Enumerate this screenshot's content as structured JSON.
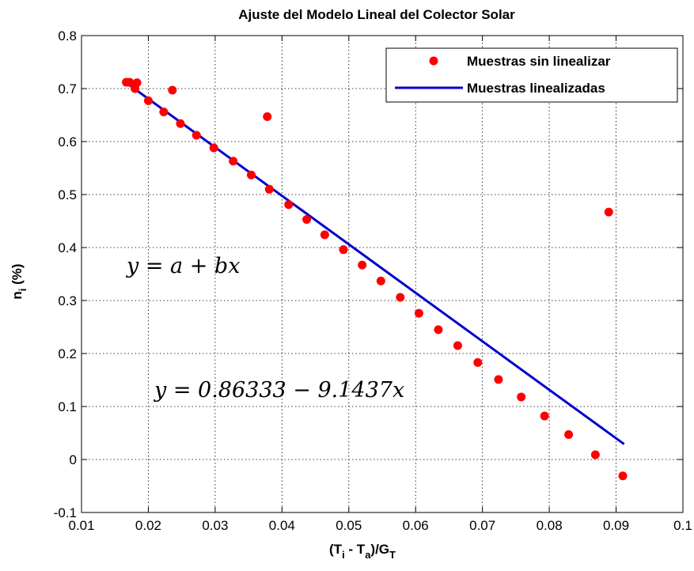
{
  "chart_data": {
    "type": "scatter",
    "title": "Ajuste del Modelo Lineal del Colector Solar",
    "xlabel": {
      "base": "(T",
      "sub1": "i",
      "mid": " - T",
      "sub2": "a",
      "end": ")/G",
      "sub3": "T"
    },
    "ylabel": {
      "base": "n",
      "sub": "i",
      "end": " (%)"
    },
    "xlim": [
      0.01,
      0.1
    ],
    "ylim": [
      -0.1,
      0.8
    ],
    "xticks": [
      0.01,
      0.02,
      0.03,
      0.04,
      0.05,
      0.06,
      0.07,
      0.08,
      0.09,
      0.1
    ],
    "xtick_labels": [
      "0.01",
      "0.02",
      "0.03",
      "0.04",
      "0.05",
      "0.06",
      "0.07",
      "0.08",
      "0.09",
      "0.1"
    ],
    "yticks": [
      -0.1,
      0,
      0.1,
      0.2,
      0.3,
      0.4,
      0.5,
      0.6,
      0.7,
      0.8
    ],
    "ytick_labels": [
      "-0.1",
      "0",
      "0.1",
      "0.2",
      "0.3",
      "0.4",
      "0.5",
      "0.6",
      "0.7",
      "0.8"
    ],
    "grid": true,
    "legend_position": "top-right",
    "series": [
      {
        "name": "Muestras sin linealizar",
        "kind": "scatter",
        "color": "#ff0000",
        "points": [
          [
            0.0167,
            0.712
          ],
          [
            0.0172,
            0.712
          ],
          [
            0.018,
            0.7
          ],
          [
            0.0183,
            0.711
          ],
          [
            0.02,
            0.677
          ],
          [
            0.0223,
            0.656
          ],
          [
            0.0236,
            0.697
          ],
          [
            0.0248,
            0.634
          ],
          [
            0.0272,
            0.612
          ],
          [
            0.0298,
            0.588
          ],
          [
            0.0327,
            0.563
          ],
          [
            0.0354,
            0.537
          ],
          [
            0.0378,
            0.647
          ],
          [
            0.0381,
            0.51
          ],
          [
            0.041,
            0.481
          ],
          [
            0.0437,
            0.453
          ],
          [
            0.0464,
            0.424
          ],
          [
            0.0492,
            0.396
          ],
          [
            0.052,
            0.367
          ],
          [
            0.0548,
            0.337
          ],
          [
            0.0577,
            0.306
          ],
          [
            0.0605,
            0.276
          ],
          [
            0.0634,
            0.245
          ],
          [
            0.0663,
            0.215
          ],
          [
            0.0693,
            0.183
          ],
          [
            0.0724,
            0.151
          ],
          [
            0.0758,
            0.118
          ],
          [
            0.0793,
            0.082
          ],
          [
            0.0829,
            0.047
          ],
          [
            0.0869,
            0.009
          ],
          [
            0.0889,
            0.467
          ],
          [
            0.091,
            -0.031
          ]
        ]
      },
      {
        "name": "Muestras linealizadas",
        "kind": "line",
        "color": "#0000cc",
        "points": [
          [
            0.0169,
            0.709
          ],
          [
            0.0912,
            0.029
          ]
        ]
      }
    ],
    "annotations": [
      {
        "text": "y = a + bx",
        "x": 0.0175,
        "y": 0.35
      },
      {
        "text": "y = 0.86333 − 9.1437x",
        "x": 0.0215,
        "y": 0.125
      }
    ]
  }
}
